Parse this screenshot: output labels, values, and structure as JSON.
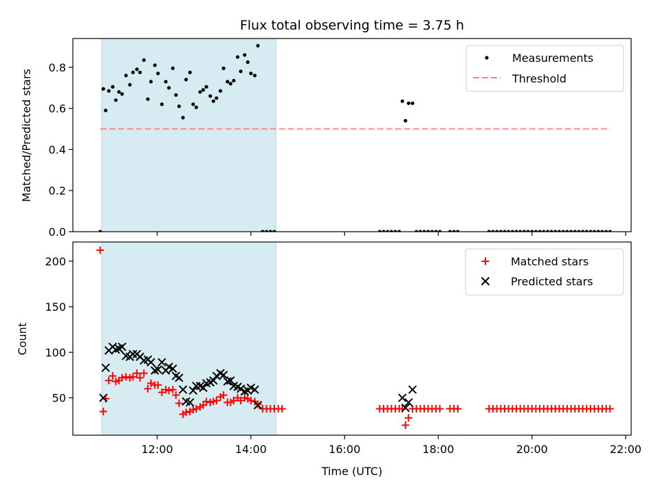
{
  "chart_data": [
    {
      "type": "scatter",
      "title": "Flux total observing time = 3.75 h",
      "xlabel": "",
      "ylabel": "Matched/Predicted stars",
      "ylim": [
        0,
        0.94
      ],
      "yticks": [
        "0.0",
        "0.2",
        "0.4",
        "0.6",
        "0.8"
      ],
      "ytick_values": [
        0,
        0.2,
        0.4,
        0.6,
        0.8
      ],
      "legend_position": "top-right",
      "shaded_span": {
        "start": "10:49",
        "end": "14:32",
        "color": "#add8e6"
      },
      "threshold": {
        "name": "Threshold",
        "value": 0.5,
        "x_start": "10:47",
        "x_end": "21:40",
        "color": "#ff7f7f"
      },
      "series": [
        {
          "name": "Measurements",
          "color": "#000000",
          "marker": "dot",
          "points": [
            [
              "10:47",
              0.0
            ],
            [
              "10:51",
              0.695
            ],
            [
              "10:54",
              0.59
            ],
            [
              "10:58",
              0.685
            ],
            [
              "11:03",
              0.705
            ],
            [
              "11:07",
              0.64
            ],
            [
              "11:11",
              0.68
            ],
            [
              "11:15",
              0.67
            ],
            [
              "11:20",
              0.76
            ],
            [
              "11:25",
              0.715
            ],
            [
              "11:29",
              0.775
            ],
            [
              "11:34",
              0.79
            ],
            [
              "11:38",
              0.775
            ],
            [
              "11:43",
              0.835
            ],
            [
              "11:48",
              0.645
            ],
            [
              "11:52",
              0.73
            ],
            [
              "11:57",
              0.81
            ],
            [
              "12:01",
              0.77
            ],
            [
              "12:06",
              0.62
            ],
            [
              "12:11",
              0.73
            ],
            [
              "12:15",
              0.7
            ],
            [
              "12:20",
              0.795
            ],
            [
              "12:24",
              0.665
            ],
            [
              "12:28",
              0.61
            ],
            [
              "12:33",
              0.555
            ],
            [
              "12:37",
              0.74
            ],
            [
              "12:42",
              0.775
            ],
            [
              "12:46",
              0.62
            ],
            [
              "12:50",
              0.605
            ],
            [
              "12:55",
              0.68
            ],
            [
              "12:59",
              0.69
            ],
            [
              "13:03",
              0.705
            ],
            [
              "13:08",
              0.66
            ],
            [
              "13:12",
              0.635
            ],
            [
              "13:16",
              0.65
            ],
            [
              "13:21",
              0.685
            ],
            [
              "13:25",
              0.795
            ],
            [
              "13:30",
              0.73
            ],
            [
              "13:34",
              0.72
            ],
            [
              "13:38",
              0.735
            ],
            [
              "13:43",
              0.85
            ],
            [
              "13:47",
              0.78
            ],
            [
              "13:52",
              0.86
            ],
            [
              "13:56",
              0.825
            ],
            [
              "14:00",
              0.77
            ],
            [
              "14:05",
              0.76
            ],
            [
              "14:09",
              0.905
            ],
            [
              "14:15",
              0.0
            ],
            [
              "14:20",
              0.0
            ],
            [
              "14:25",
              0.0
            ],
            [
              "14:30",
              0.0
            ],
            [
              "16:45",
              0.0
            ],
            [
              "16:50",
              0.0
            ],
            [
              "16:55",
              0.0
            ],
            [
              "17:00",
              0.0
            ],
            [
              "17:05",
              0.0
            ],
            [
              "17:10",
              0.0
            ],
            [
              "17:14",
              0.635
            ],
            [
              "17:18",
              0.54
            ],
            [
              "17:22",
              0.625
            ],
            [
              "17:27",
              0.625
            ],
            [
              "17:32",
              0.0
            ],
            [
              "17:37",
              0.0
            ],
            [
              "17:42",
              0.0
            ],
            [
              "17:47",
              0.0
            ],
            [
              "17:52",
              0.0
            ],
            [
              "17:57",
              0.0
            ],
            [
              "18:02",
              0.0
            ],
            [
              "18:15",
              0.0
            ],
            [
              "18:20",
              0.0
            ],
            [
              "18:25",
              0.0
            ],
            [
              "19:05",
              0.0
            ],
            [
              "19:10",
              0.0
            ],
            [
              "19:15",
              0.0
            ],
            [
              "19:20",
              0.0
            ],
            [
              "19:25",
              0.0
            ],
            [
              "19:30",
              0.0
            ],
            [
              "19:35",
              0.0
            ],
            [
              "19:40",
              0.0
            ],
            [
              "19:45",
              0.0
            ],
            [
              "19:50",
              0.0
            ],
            [
              "19:55",
              0.0
            ],
            [
              "20:00",
              0.0
            ],
            [
              "20:05",
              0.0
            ],
            [
              "20:10",
              0.0
            ],
            [
              "20:15",
              0.0
            ],
            [
              "20:20",
              0.0
            ],
            [
              "20:25",
              0.0
            ],
            [
              "20:30",
              0.0
            ],
            [
              "20:35",
              0.0
            ],
            [
              "20:40",
              0.0
            ],
            [
              "20:45",
              0.0
            ],
            [
              "20:50",
              0.0
            ],
            [
              "20:55",
              0.0
            ],
            [
              "21:00",
              0.0
            ],
            [
              "21:05",
              0.0
            ],
            [
              "21:10",
              0.0
            ],
            [
              "21:15",
              0.0
            ],
            [
              "21:20",
              0.0
            ],
            [
              "21:25",
              0.0
            ],
            [
              "21:30",
              0.0
            ],
            [
              "21:35",
              0.0
            ],
            [
              "21:40",
              0.0
            ]
          ]
        }
      ]
    },
    {
      "type": "scatter",
      "title": "",
      "xlabel": "Time (UTC)",
      "ylabel": "Count",
      "ylim": [
        9,
        221
      ],
      "yticks": [
        "50",
        "100",
        "150",
        "200"
      ],
      "ytick_values": [
        50,
        100,
        150,
        200
      ],
      "xlim": [
        "10:12",
        "22:07"
      ],
      "xticks": [
        "12:00",
        "14:00",
        "16:00",
        "18:00",
        "20:00",
        "22:00"
      ],
      "legend_position": "top-right",
      "shaded_span": {
        "start": "10:49",
        "end": "14:32",
        "color": "#add8e6"
      },
      "series": [
        {
          "name": "Matched stars",
          "color": "#ff0000",
          "marker": "plus",
          "points": [
            [
              "10:47",
              212
            ],
            [
              "10:51",
              35
            ],
            [
              "10:54",
              49
            ],
            [
              "10:58",
              69
            ],
            [
              "11:03",
              74
            ],
            [
              "11:07",
              68
            ],
            [
              "11:11",
              69
            ],
            [
              "11:15",
              72
            ],
            [
              "11:20",
              73
            ],
            [
              "11:25",
              72
            ],
            [
              "11:29",
              73
            ],
            [
              "11:34",
              77
            ],
            [
              "11:38",
              72
            ],
            [
              "11:43",
              77
            ],
            [
              "11:48",
              60
            ],
            [
              "11:52",
              66
            ],
            [
              "11:57",
              64
            ],
            [
              "12:01",
              64
            ],
            [
              "12:06",
              56
            ],
            [
              "12:11",
              59
            ],
            [
              "12:15",
              58
            ],
            [
              "12:20",
              59
            ],
            [
              "12:24",
              53
            ],
            [
              "12:28",
              44
            ],
            [
              "12:33",
              32
            ],
            [
              "12:37",
              34
            ],
            [
              "12:42",
              35
            ],
            [
              "12:46",
              37
            ],
            [
              "12:50",
              38
            ],
            [
              "12:55",
              40
            ],
            [
              "12:59",
              42
            ],
            [
              "13:03",
              46
            ],
            [
              "13:08",
              45
            ],
            [
              "13:12",
              46
            ],
            [
              "13:16",
              47
            ],
            [
              "13:21",
              51
            ],
            [
              "13:25",
              53
            ],
            [
              "13:30",
              45
            ],
            [
              "13:34",
              45
            ],
            [
              "13:38",
              47
            ],
            [
              "13:43",
              50
            ],
            [
              "13:47",
              47
            ],
            [
              "13:52",
              50
            ],
            [
              "13:56",
              49
            ],
            [
              "14:00",
              47
            ],
            [
              "14:05",
              46
            ],
            [
              "14:09",
              43
            ],
            [
              "14:15",
              38
            ],
            [
              "14:20",
              38
            ],
            [
              "14:25",
              38
            ],
            [
              "14:30",
              38
            ],
            [
              "14:35",
              38
            ],
            [
              "14:40",
              38
            ],
            [
              "16:45",
              38
            ],
            [
              "16:50",
              38
            ],
            [
              "16:55",
              38
            ],
            [
              "17:00",
              38
            ],
            [
              "17:05",
              38
            ],
            [
              "17:10",
              38
            ],
            [
              "17:14",
              38
            ],
            [
              "17:18",
              20
            ],
            [
              "17:22",
              28
            ],
            [
              "17:27",
              38
            ],
            [
              "17:32",
              38
            ],
            [
              "17:37",
              38
            ],
            [
              "17:42",
              38
            ],
            [
              "17:47",
              38
            ],
            [
              "17:52",
              38
            ],
            [
              "17:57",
              38
            ],
            [
              "18:02",
              38
            ],
            [
              "18:15",
              38
            ],
            [
              "18:20",
              38
            ],
            [
              "18:25",
              38
            ],
            [
              "19:05",
              38
            ],
            [
              "19:10",
              38
            ],
            [
              "19:15",
              38
            ],
            [
              "19:20",
              38
            ],
            [
              "19:25",
              38
            ],
            [
              "19:30",
              38
            ],
            [
              "19:35",
              38
            ],
            [
              "19:40",
              38
            ],
            [
              "19:45",
              38
            ],
            [
              "19:50",
              38
            ],
            [
              "19:55",
              38
            ],
            [
              "20:00",
              38
            ],
            [
              "20:05",
              38
            ],
            [
              "20:10",
              38
            ],
            [
              "20:15",
              38
            ],
            [
              "20:20",
              38
            ],
            [
              "20:25",
              38
            ],
            [
              "20:30",
              38
            ],
            [
              "20:35",
              38
            ],
            [
              "20:40",
              38
            ],
            [
              "20:45",
              38
            ],
            [
              "20:50",
              38
            ],
            [
              "20:55",
              38
            ],
            [
              "21:00",
              38
            ],
            [
              "21:05",
              38
            ],
            [
              "21:10",
              38
            ],
            [
              "21:15",
              38
            ],
            [
              "21:20",
              38
            ],
            [
              "21:25",
              38
            ],
            [
              "21:30",
              38
            ],
            [
              "21:35",
              38
            ],
            [
              "21:40",
              38
            ]
          ]
        },
        {
          "name": "Predicted stars",
          "color": "#000000",
          "marker": "x",
          "points": [
            [
              "10:51",
              50
            ],
            [
              "10:54",
              83
            ],
            [
              "10:58",
              102
            ],
            [
              "11:03",
              106
            ],
            [
              "11:07",
              103
            ],
            [
              "11:11",
              104
            ],
            [
              "11:15",
              106
            ],
            [
              "11:20",
              96
            ],
            [
              "11:25",
              95
            ],
            [
              "11:29",
              98
            ],
            [
              "11:34",
              98
            ],
            [
              "11:38",
              95
            ],
            [
              "11:43",
              91
            ],
            [
              "11:48",
              92
            ],
            [
              "11:52",
              89
            ],
            [
              "11:57",
              80
            ],
            [
              "12:01",
              81
            ],
            [
              "12:06",
              89
            ],
            [
              "12:11",
              80
            ],
            [
              "12:15",
              84
            ],
            [
              "12:20",
              82
            ],
            [
              "12:24",
              74
            ],
            [
              "12:28",
              72
            ],
            [
              "12:33",
              59
            ],
            [
              "12:37",
              46
            ],
            [
              "12:42",
              45
            ],
            [
              "12:46",
              58
            ],
            [
              "12:50",
              63
            ],
            [
              "12:55",
              63
            ],
            [
              "12:59",
              61
            ],
            [
              "13:03",
              66
            ],
            [
              "13:08",
              67
            ],
            [
              "13:12",
              69
            ],
            [
              "13:16",
              74
            ],
            [
              "13:21",
              77
            ],
            [
              "13:25",
              75
            ],
            [
              "13:30",
              68
            ],
            [
              "13:34",
              69
            ],
            [
              "13:38",
              63
            ],
            [
              "13:43",
              62
            ],
            [
              "13:47",
              60
            ],
            [
              "13:52",
              57
            ],
            [
              "13:56",
              58
            ],
            [
              "14:00",
              61
            ],
            [
              "14:05",
              59
            ],
            [
              "14:09",
              42
            ],
            [
              "17:14",
              50
            ],
            [
              "17:18",
              39
            ],
            [
              "17:22",
              45
            ],
            [
              "17:27",
              59
            ]
          ]
        }
      ]
    }
  ]
}
